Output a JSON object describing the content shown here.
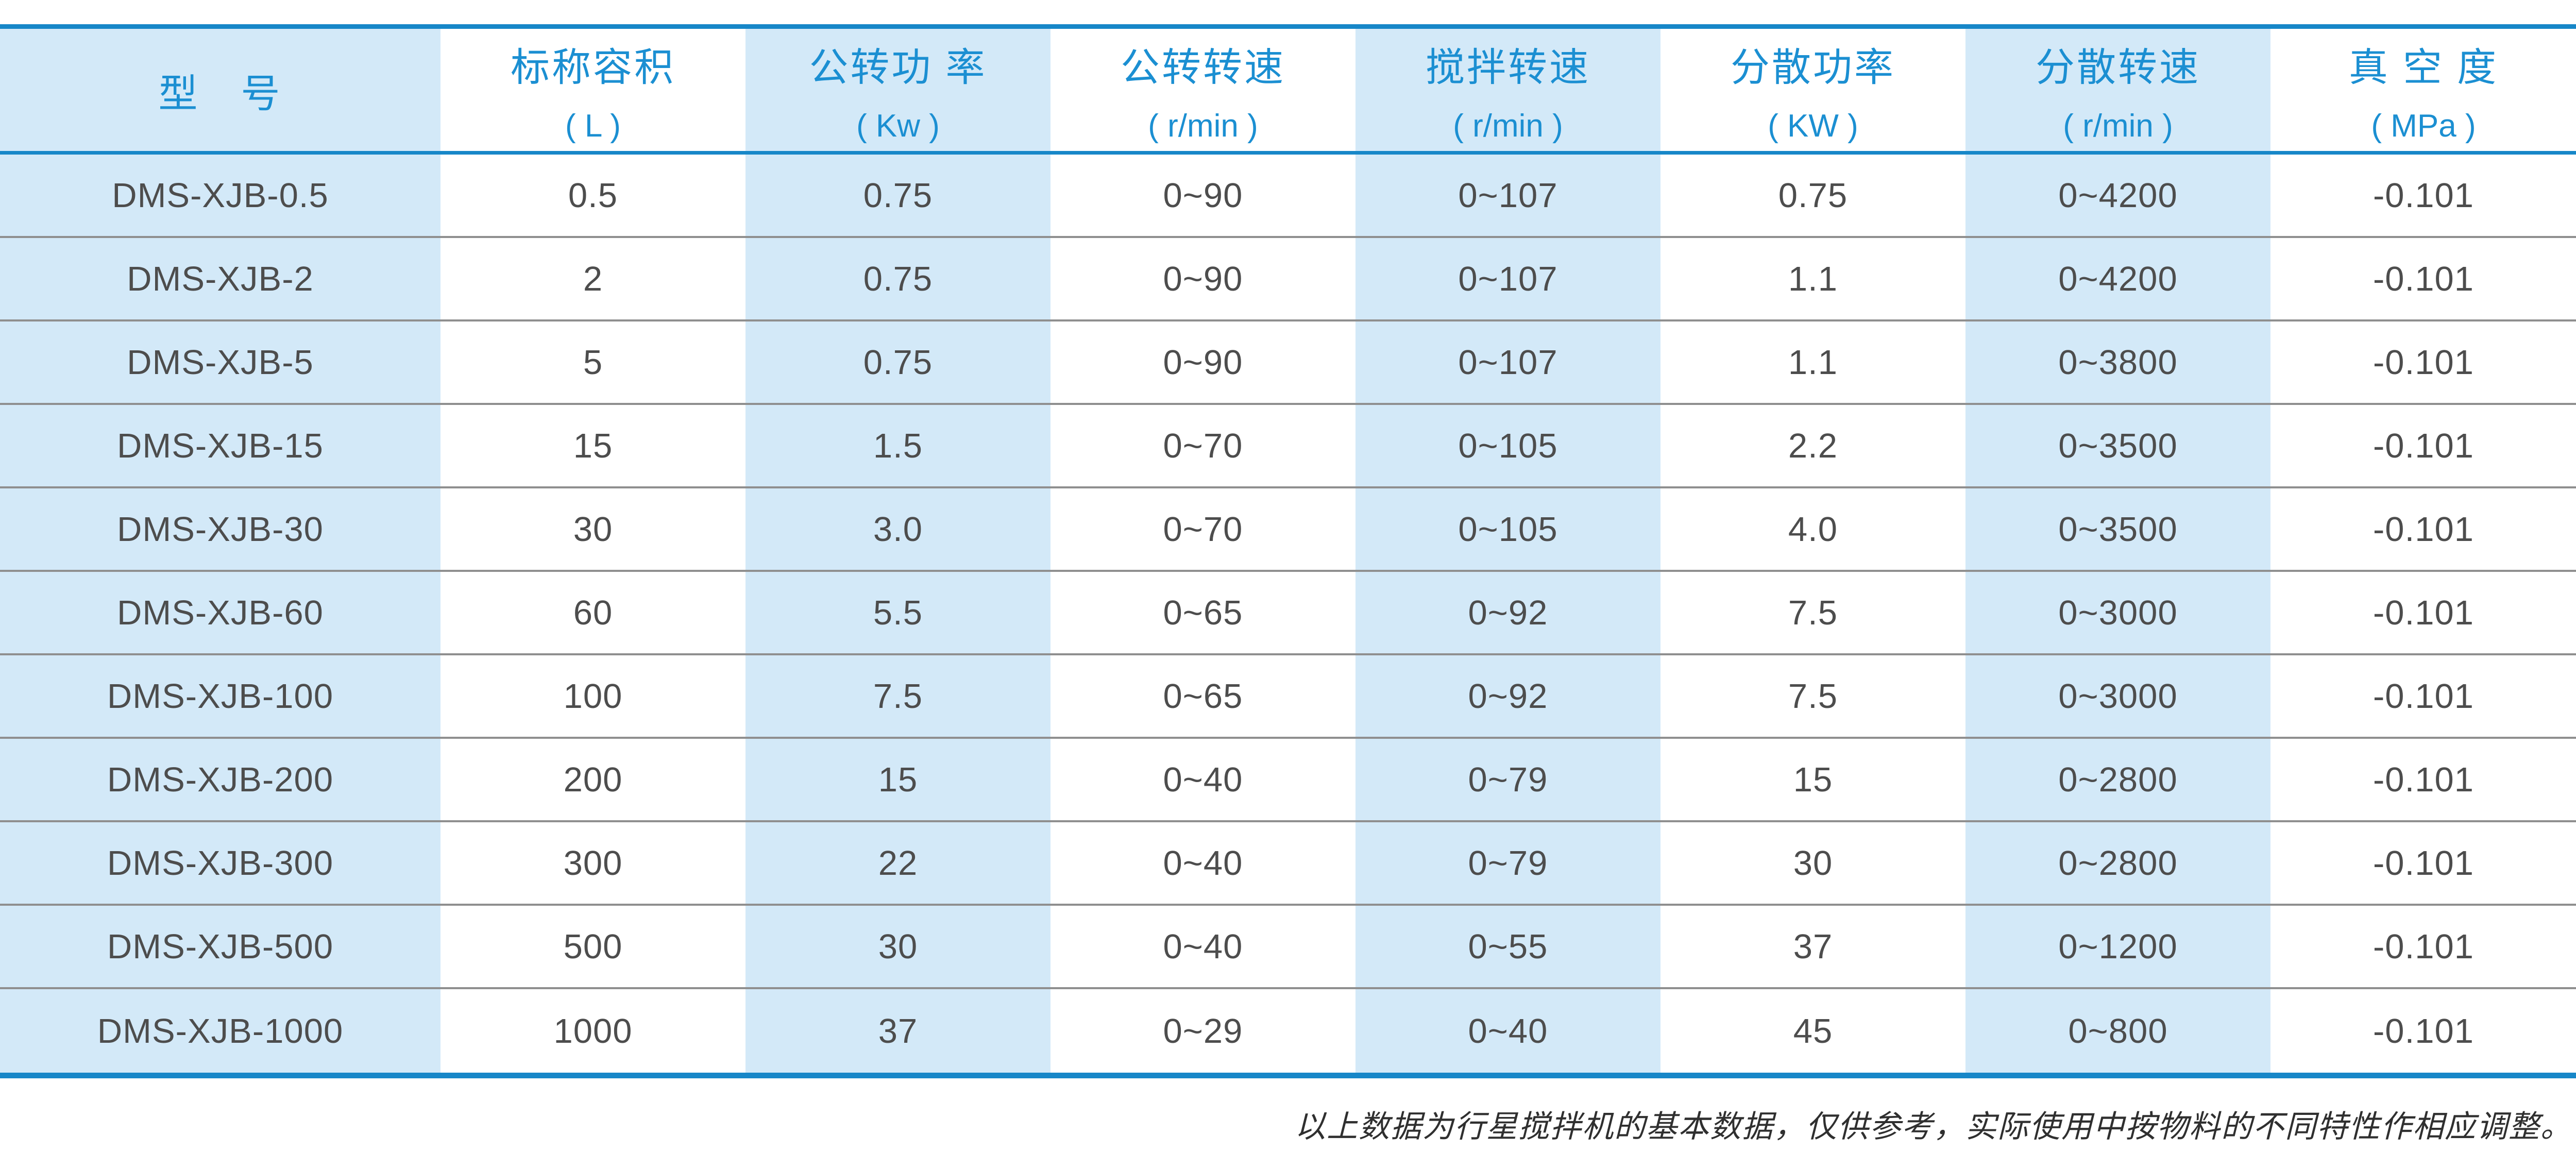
{
  "table": {
    "columns": [
      {
        "label": "型　号",
        "unit": ""
      },
      {
        "label": "标称容积",
        "unit": "( L )"
      },
      {
        "label": "公转功 率",
        "unit": "( Kw )"
      },
      {
        "label": "公转转速",
        "unit": "( r/min )"
      },
      {
        "label": "搅拌转速",
        "unit": "( r/min )"
      },
      {
        "label": "分散功率",
        "unit": "( KW )"
      },
      {
        "label": "分散转速",
        "unit": "( r/min )"
      },
      {
        "label": "真 空 度",
        "unit": "( MPa )"
      }
    ],
    "rows": [
      [
        "DMS-XJB-0.5",
        "0.5",
        "0.75",
        "0~90",
        "0~107",
        "0.75",
        "0~4200",
        "-0.101"
      ],
      [
        "DMS-XJB-2",
        "2",
        "0.75",
        "0~90",
        "0~107",
        "1.1",
        "0~4200",
        "-0.101"
      ],
      [
        "DMS-XJB-5",
        "5",
        "0.75",
        "0~90",
        "0~107",
        "1.1",
        "0~3800",
        "-0.101"
      ],
      [
        "DMS-XJB-15",
        "15",
        "1.5",
        "0~70",
        "0~105",
        "2.2",
        "0~3500",
        "-0.101"
      ],
      [
        "DMS-XJB-30",
        "30",
        "3.0",
        "0~70",
        "0~105",
        "4.0",
        "0~3500",
        "-0.101"
      ],
      [
        "DMS-XJB-60",
        "60",
        "5.5",
        "0~65",
        "0~92",
        "7.5",
        "0~3000",
        "-0.101"
      ],
      [
        "DMS-XJB-100",
        "100",
        "7.5",
        "0~65",
        "0~92",
        "7.5",
        "0~3000",
        "-0.101"
      ],
      [
        "DMS-XJB-200",
        "200",
        "15",
        "0~40",
        "0~79",
        "15",
        "0~2800",
        "-0.101"
      ],
      [
        "DMS-XJB-300",
        "300",
        "22",
        "0~40",
        "0~79",
        "30",
        "0~2800",
        "-0.101"
      ],
      [
        "DMS-XJB-500",
        "500",
        "30",
        "0~40",
        "0~55",
        "37",
        "0~1200",
        "-0.101"
      ],
      [
        "DMS-XJB-1000",
        "1000",
        "37",
        "0~29",
        "0~40",
        "45",
        "0~800",
        "-0.101"
      ]
    ]
  },
  "footer": {
    "note": "以上数据为行星搅拌机的基本数据，仅供参考，实际使用中按物料的不同特性作相应调整。"
  },
  "colors": {
    "accent_blue": "#1787c8",
    "header_text_blue": "#1b8fd2",
    "column_tint_blue": "#d3e9f8",
    "body_text_gray": "#4d4d4d",
    "row_separator_gray": "#8f8f8f",
    "footer_text": "#2f2f2f"
  }
}
